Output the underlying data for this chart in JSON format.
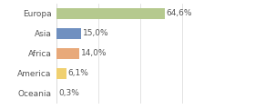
{
  "categories": [
    "Europa",
    "Asia",
    "Africa",
    "America",
    "Oceania"
  ],
  "values": [
    64.6,
    15.0,
    14.0,
    6.1,
    0.3
  ],
  "labels": [
    "64,6%",
    "15,0%",
    "14,0%",
    "6,1%",
    "0,3%"
  ],
  "bar_colors": [
    "#b5c98e",
    "#7090c0",
    "#e8a97a",
    "#f0d070",
    "#f5f0e0"
  ],
  "background_color": "#ffffff",
  "xlim": [
    0,
    100
  ],
  "bar_height": 0.55,
  "label_fontsize": 6.5,
  "tick_fontsize": 6.5,
  "grid_color": "#d8d8d8",
  "text_color": "#555555",
  "xticks": [
    0,
    25,
    50,
    75,
    100
  ]
}
